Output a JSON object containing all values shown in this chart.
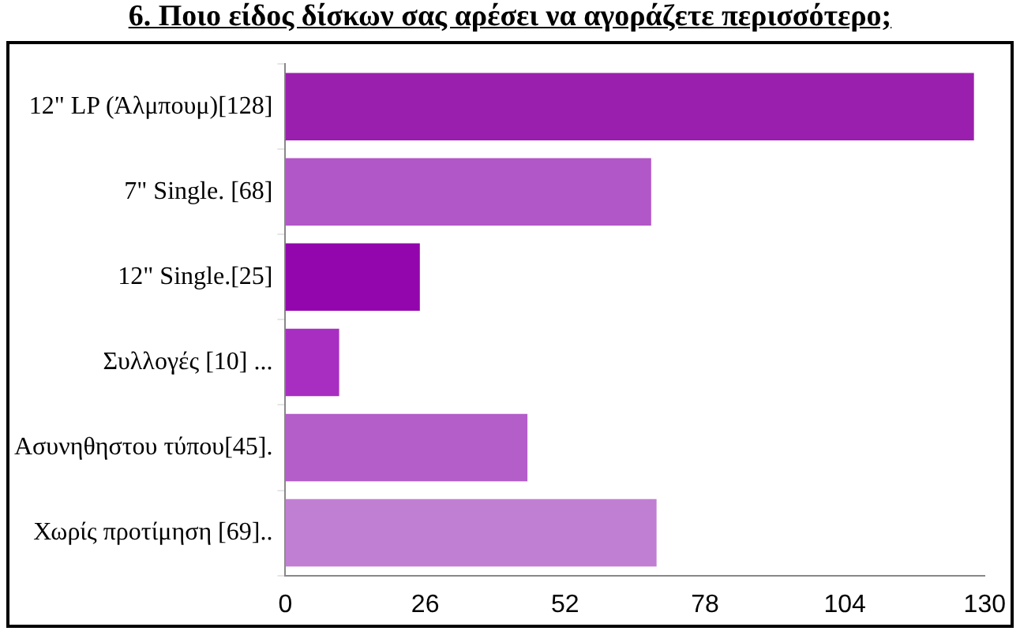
{
  "chart_data": {
    "type": "bar",
    "orientation": "horizontal",
    "title": "6. Ποιο είδος δίσκων σας αρέσει να αγοράζετε περισσότερο;",
    "categories": [
      "12\" LP (Άλμπουμ)[128]",
      "7\" Single. [68]",
      "12\" Single.[25]",
      "Συλλογές [10] ...",
      "Ασυνηθηστου τύπου[45].",
      "Χωρίς προτίμηση [69].."
    ],
    "values": [
      128,
      68,
      25,
      10,
      45,
      69
    ],
    "colors": [
      "#9b1fae",
      "#b257c8",
      "#9306ad",
      "#a82ec2",
      "#b45ec9",
      "#c17fd3"
    ],
    "xlim": [
      0,
      130
    ],
    "xticks": [
      0,
      26,
      52,
      78,
      104,
      130
    ],
    "grid": false,
    "legend": false
  }
}
